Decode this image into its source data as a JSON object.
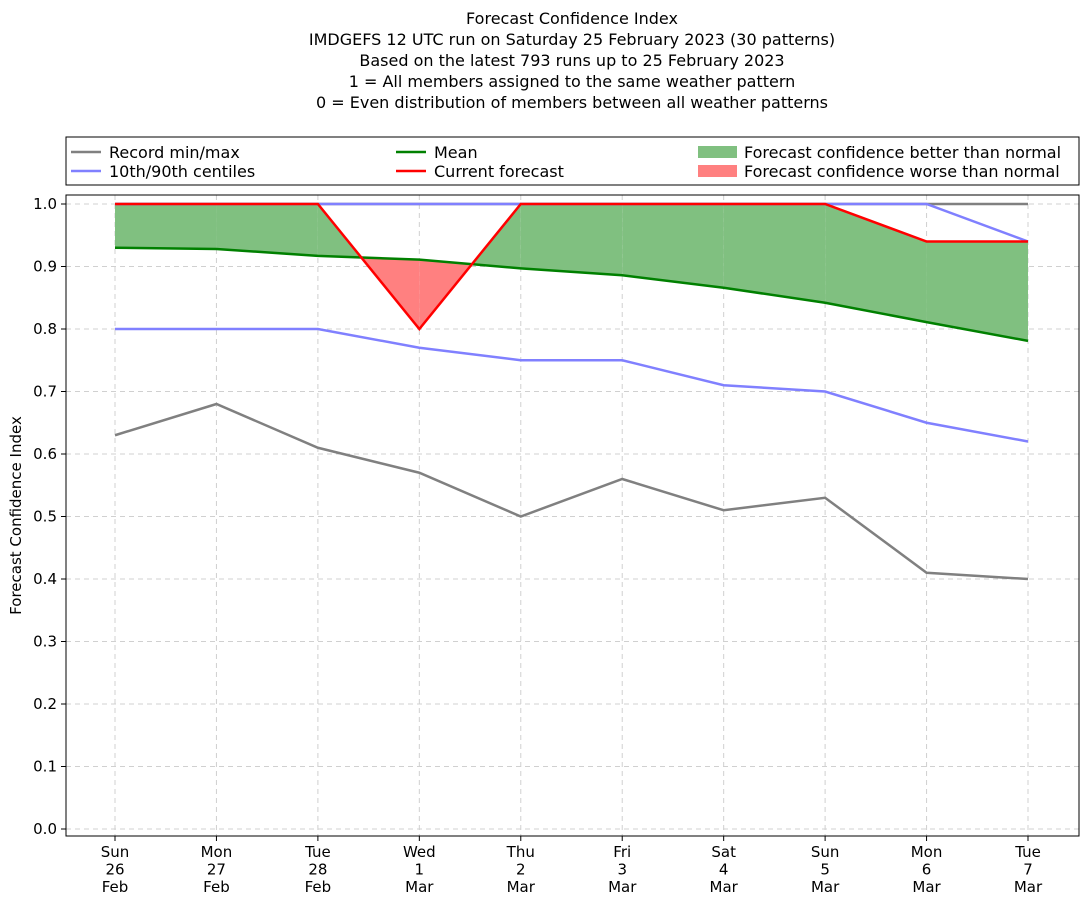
{
  "title_lines": [
    "Forecast Confidence Index",
    "IMDGEFS 12 UTC run on Saturday 25 February 2023 (30 patterns)",
    "Based on the latest 793 runs up to 25 February 2023",
    "1 = All members assigned to the same weather pattern",
    "0 = Even distribution of members between all weather patterns"
  ],
  "legend": {
    "items": [
      {
        "label": "Record min/max",
        "kind": "line",
        "color": "#808080"
      },
      {
        "label": "Mean",
        "kind": "line",
        "color": "#008000"
      },
      {
        "label": "Forecast confidence better than normal",
        "kind": "patch",
        "color": "#80c080"
      },
      {
        "label": "10th/90th centiles",
        "kind": "line",
        "color": "#8080ff"
      },
      {
        "label": "Current forecast",
        "kind": "line",
        "color": "#ff0000"
      },
      {
        "label": "Forecast confidence worse than normal",
        "kind": "patch",
        "color": "#ff8080"
      }
    ]
  },
  "chart_data": {
    "type": "line",
    "ylabel": "Forecast Confidence Index",
    "xlabel": "",
    "ylim": [
      0.0,
      1.0
    ],
    "yticks": [
      "0.0",
      "0.1",
      "0.2",
      "0.3",
      "0.4",
      "0.5",
      "0.6",
      "0.7",
      "0.8",
      "0.9",
      "1.0"
    ],
    "grid": true,
    "legend_position": "top",
    "categories": [
      [
        "Sun",
        "26",
        "Feb"
      ],
      [
        "Mon",
        "27",
        "Feb"
      ],
      [
        "Tue",
        "28",
        "Feb"
      ],
      [
        "Wed",
        "1",
        "Mar"
      ],
      [
        "Thu",
        "2",
        "Mar"
      ],
      [
        "Fri",
        "3",
        "Mar"
      ],
      [
        "Sat",
        "4",
        "Mar"
      ],
      [
        "Sun",
        "5",
        "Mar"
      ],
      [
        "Mon",
        "6",
        "Mar"
      ],
      [
        "Tue",
        "7",
        "Mar"
      ]
    ],
    "series": [
      {
        "name": "Record min/max",
        "role": "record_min",
        "color": "#808080",
        "values": [
          0.63,
          0.68,
          0.61,
          0.57,
          0.5,
          0.56,
          0.51,
          0.53,
          0.41,
          0.4
        ]
      },
      {
        "name": "Record min/max",
        "role": "record_max",
        "color": "#808080",
        "values": [
          1.0,
          1.0,
          1.0,
          1.0,
          1.0,
          1.0,
          1.0,
          1.0,
          1.0,
          1.0
        ]
      },
      {
        "name": "10th/90th centiles",
        "role": "p10",
        "color": "#8080ff",
        "values": [
          0.8,
          0.8,
          0.8,
          0.77,
          0.75,
          0.75,
          0.71,
          0.7,
          0.65,
          0.62
        ]
      },
      {
        "name": "10th/90th centiles",
        "role": "p90",
        "color": "#8080ff",
        "values": [
          1.0,
          1.0,
          1.0,
          1.0,
          1.0,
          1.0,
          1.0,
          1.0,
          1.0,
          0.94
        ]
      },
      {
        "name": "Mean",
        "role": "mean",
        "color": "#008000",
        "values": [
          0.93,
          0.928,
          0.917,
          0.911,
          0.897,
          0.886,
          0.866,
          0.842,
          0.811,
          0.781
        ]
      },
      {
        "name": "Current forecast",
        "role": "current",
        "color": "#ff0000",
        "values": [
          1.0,
          1.0,
          1.0,
          0.8,
          1.0,
          1.0,
          1.0,
          1.0,
          0.94,
          0.94
        ]
      }
    ],
    "fills": {
      "better_color": "#80c080",
      "worse_color": "#ff8080"
    }
  }
}
